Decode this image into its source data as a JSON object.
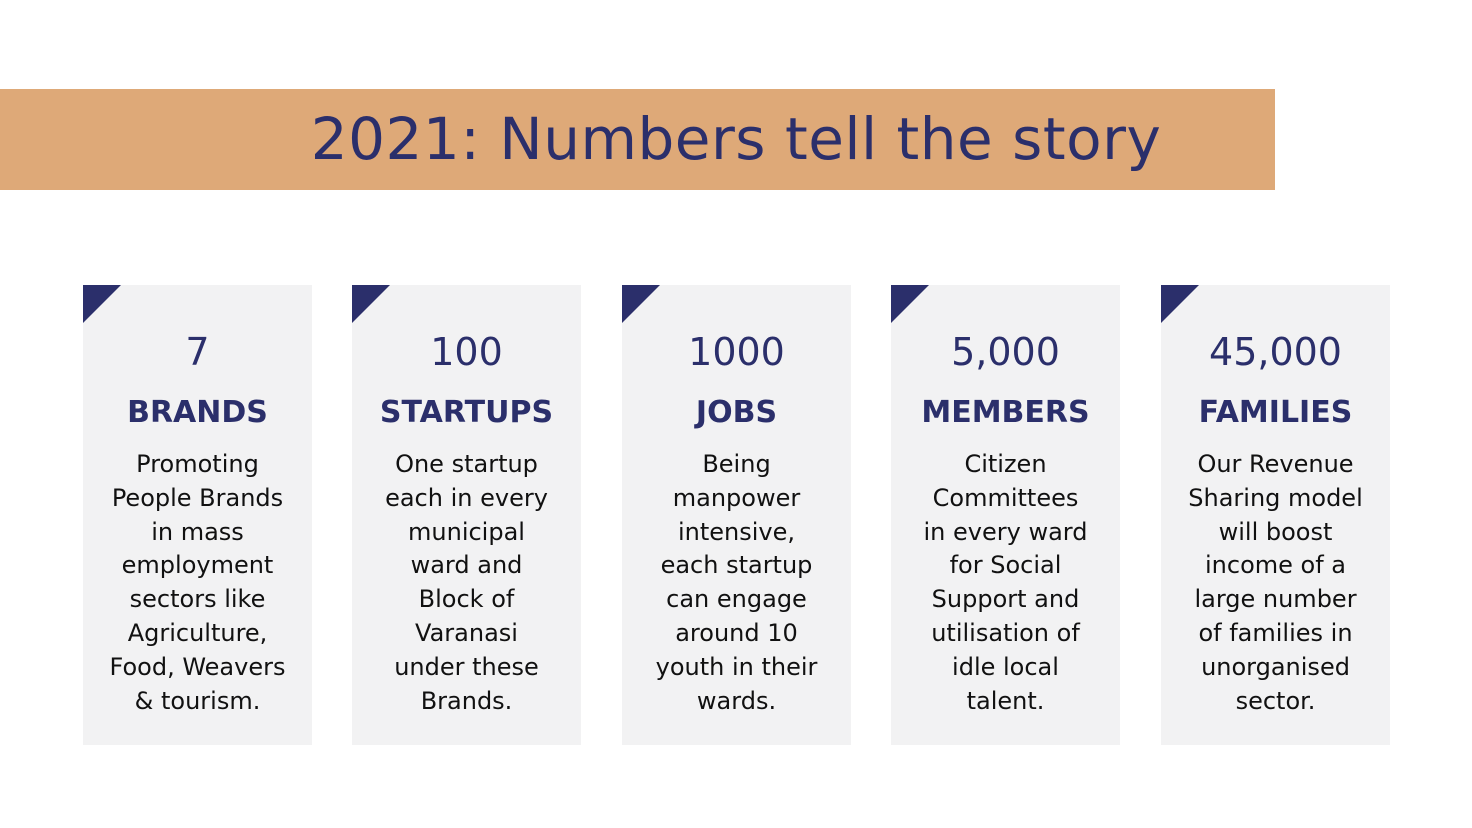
{
  "title": "2021: Numbers tell the story",
  "colors": {
    "band": "#dea978",
    "accent": "#2b2f6b",
    "card_bg": "#f2f2f3"
  },
  "cards": [
    {
      "number": "7",
      "label": "BRANDS",
      "description": "Promoting\nPeople Brands\nin mass\nemployment\nsectors like\nAgriculture,\nFood, Weavers\n& tourism."
    },
    {
      "number": "100",
      "label": "STARTUPS",
      "description": "One startup\neach in every\nmunicipal\nward and\nBlock of\nVaranasi\nunder these\nBrands."
    },
    {
      "number": "1000",
      "label": "JOBS",
      "description": "Being\nmanpower\nintensive,\neach startup\ncan engage\naround 10\nyouth in their\nwards."
    },
    {
      "number": "5,000",
      "label": "MEMBERS",
      "description": "Citizen\nCommittees\nin every ward\nfor Social\nSupport and\nutilisation of\nidle local\ntalent."
    },
    {
      "number": "45,000",
      "label": "FAMILIES",
      "description": "Our Revenue\nSharing model\nwill boost\nincome of a\nlarge number\nof families in\nunorganised\nsector."
    }
  ]
}
